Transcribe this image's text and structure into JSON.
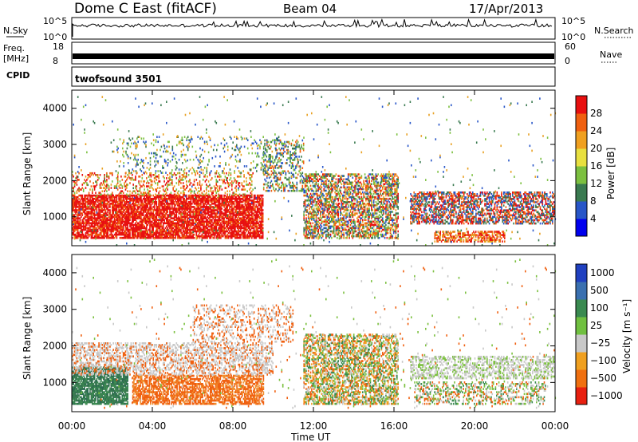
{
  "header": {
    "title": "Dome C East (fitACF)",
    "beam": "Beam 04",
    "date": "17/Apr/2013"
  },
  "top_panels": {
    "nsky_label": "N.Sky",
    "nsky_ticks": [
      "10^5",
      "10^0"
    ],
    "nsearch_label": "N.Search",
    "nsearch_ticks": [
      "10^5",
      "10^0"
    ],
    "freq_label": "Freq.",
    "freq_unit": "[MHz]",
    "freq_ticks": [
      "18",
      "8"
    ],
    "nave_label": "Nave",
    "nave_ticks": [
      "60",
      "0"
    ],
    "cpid_label": "CPID",
    "cpid_value": "twofsound 3501"
  },
  "chart_data": [
    {
      "type": "heatmap",
      "name": "power",
      "ylabel": "Slant Range [km]",
      "yticks": [
        1000,
        2000,
        3000,
        4000
      ],
      "ylim": [
        200,
        4500
      ],
      "xticks": [
        "00:00",
        "04:00",
        "08:00",
        "12:00",
        "16:00",
        "20:00",
        "00:00"
      ],
      "xlim_hours": [
        0,
        24
      ],
      "colorbar": {
        "label": "Power [dB]",
        "ticks": [
          "4",
          "8",
          "12",
          "16",
          "20",
          "24",
          "28"
        ],
        "colors": [
          "#0000ee",
          "#2856c8",
          "#3a7a50",
          "#7cc040",
          "#e8e040",
          "#f0a020",
          "#f06010",
          "#e81010"
        ]
      }
    },
    {
      "type": "heatmap",
      "name": "velocity",
      "ylabel": "Slant Range [km]",
      "yticks": [
        1000,
        2000,
        3000,
        4000
      ],
      "ylim": [
        200,
        4500
      ],
      "xticks": [
        "00:00",
        "04:00",
        "08:00",
        "12:00",
        "16:00",
        "20:00",
        "00:00"
      ],
      "xlabel": "Time UT",
      "colorbar": {
        "label": "Velocity [m s⁻¹]",
        "ticks": [
          "1000",
          "500",
          "100",
          "25",
          "−25",
          "−100",
          "−500",
          "−1000"
        ],
        "colors": [
          "#2040c0",
          "#3a70b0",
          "#3a8a50",
          "#70c040",
          "#c8c8c8",
          "#f0a020",
          "#f07010",
          "#e82010"
        ]
      }
    }
  ]
}
